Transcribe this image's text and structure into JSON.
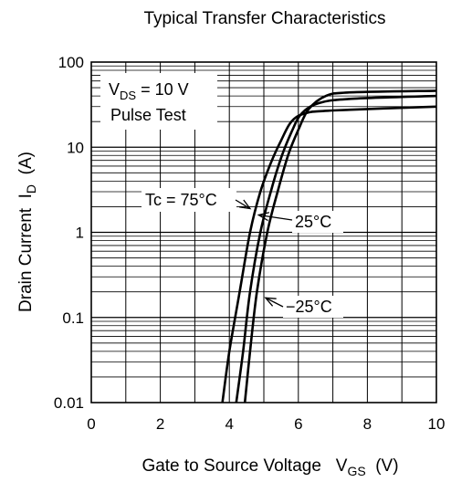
{
  "chart_data": {
    "type": "line",
    "title": "Typical Transfer Characteristics",
    "xlabel": "Gate to Source Voltage",
    "xlabel_symbol": "V",
    "xlabel_sub": "GS",
    "xlabel_unit": "(V)",
    "ylabel": "Drain Current",
    "ylabel_symbol": "I",
    "ylabel_sub": "D",
    "ylabel_unit": "(A)",
    "xlim": [
      0,
      10
    ],
    "ylim": [
      0.01,
      100
    ],
    "yscale": "log",
    "grid": true,
    "x_ticks": [
      0,
      2,
      4,
      6,
      8,
      10
    ],
    "x_tick_labels": [
      "0",
      "2",
      "4",
      "6",
      "8",
      "10"
    ],
    "y_ticks": [
      0.01,
      0.1,
      1,
      10,
      100
    ],
    "y_tick_labels": [
      "0.01",
      "0.1",
      "1",
      "10",
      "100"
    ],
    "conditions": {
      "line1_symbol": "V",
      "line1_sub": "DS",
      "line1_value": " = 10 V",
      "line2": "Pulse Test"
    },
    "series": [
      {
        "name": "Tc = 75°C",
        "points": [
          [
            3.8,
            0.01
          ],
          [
            4.0,
            0.04
          ],
          [
            4.3,
            0.2
          ],
          [
            4.6,
            1.0
          ],
          [
            4.9,
            3.0
          ],
          [
            5.2,
            6.5
          ],
          [
            5.5,
            12
          ],
          [
            5.8,
            20
          ],
          [
            6.2,
            25
          ],
          [
            7.0,
            27
          ],
          [
            10,
            30
          ]
        ]
      },
      {
        "name": "25°C",
        "points": [
          [
            4.2,
            0.01
          ],
          [
            4.4,
            0.04
          ],
          [
            4.6,
            0.2
          ],
          [
            4.9,
            1.0
          ],
          [
            5.2,
            3.0
          ],
          [
            5.5,
            7.5
          ],
          [
            5.8,
            15
          ],
          [
            6.1,
            25
          ],
          [
            6.6,
            33
          ],
          [
            7.5,
            37
          ],
          [
            10,
            40
          ]
        ]
      },
      {
        "name": "−25°C",
        "points": [
          [
            4.45,
            0.01
          ],
          [
            4.6,
            0.04
          ],
          [
            4.8,
            0.2
          ],
          [
            5.1,
            1.0
          ],
          [
            5.4,
            3.0
          ],
          [
            5.7,
            8.0
          ],
          [
            6.0,
            16
          ],
          [
            6.3,
            28
          ],
          [
            6.8,
            40
          ],
          [
            7.5,
            44
          ],
          [
            10,
            46
          ]
        ]
      }
    ],
    "annotations": [
      {
        "text": "Tc = 75°C",
        "arrow_to": [
          4.6,
          1.9
        ]
      },
      {
        "text": "25°C",
        "arrow_to": [
          4.85,
          1.6
        ]
      },
      {
        "text": "−25°C",
        "arrow_to": [
          5.05,
          0.17
        ]
      }
    ]
  }
}
